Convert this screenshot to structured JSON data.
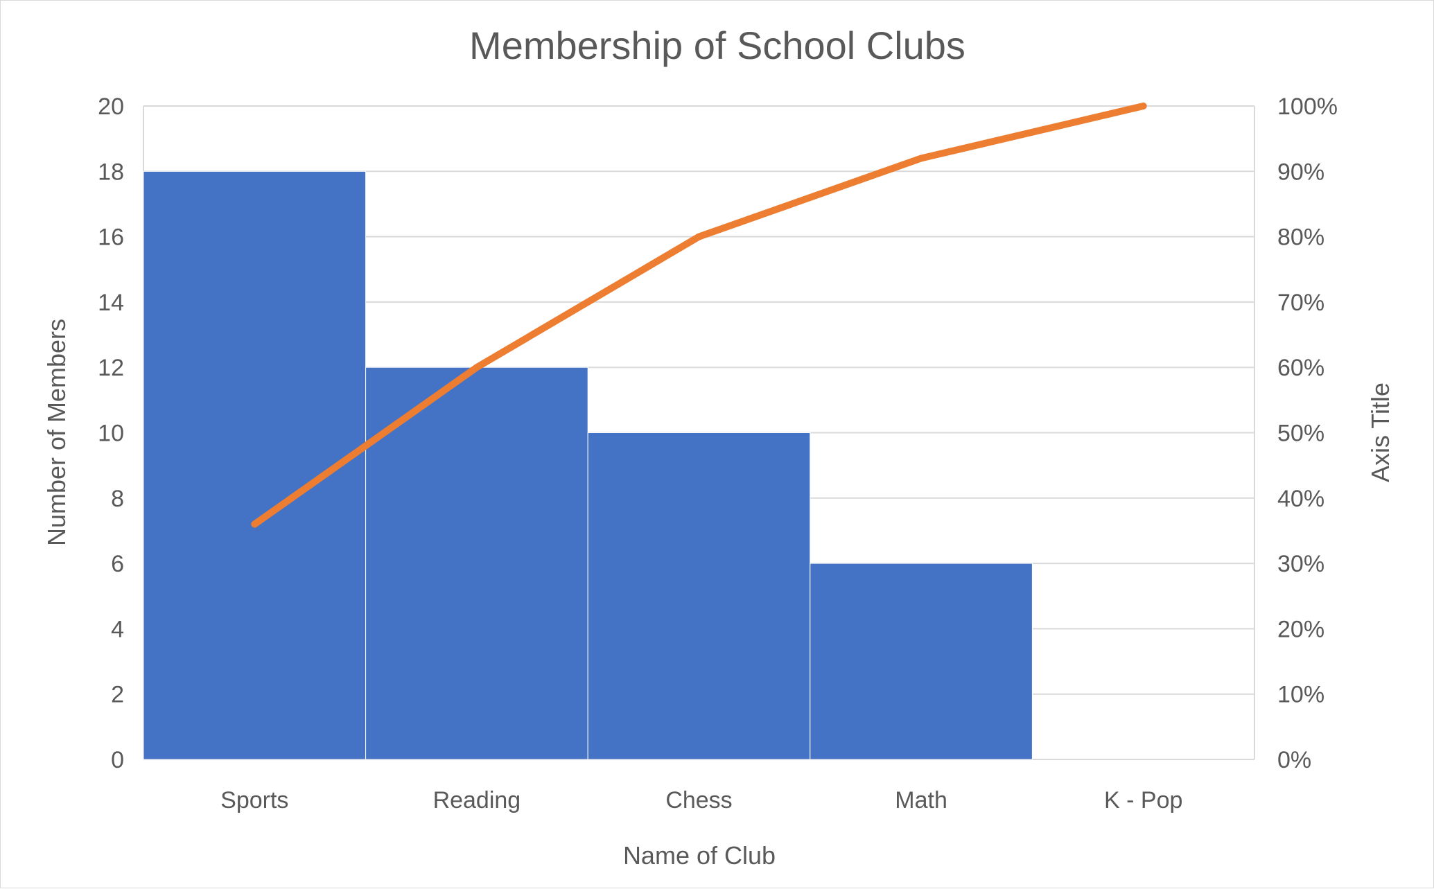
{
  "chart_data": {
    "type": "bar",
    "title": "Membership of School Clubs",
    "xlabel": "Name of Club",
    "ylabel": "Number of Members",
    "y2label": "Axis Title",
    "categories": [
      "Sports",
      "Reading",
      "Chess",
      "Math",
      "K - Pop"
    ],
    "series": [
      {
        "type": "bar",
        "values": [
          18,
          12,
          10,
          6,
          0
        ]
      },
      {
        "type": "line",
        "axis": "secondary",
        "values": [
          36,
          60,
          80,
          92,
          100
        ]
      }
    ],
    "ylim": [
      0,
      20
    ],
    "y_ticks": [
      "0",
      "2",
      "4",
      "6",
      "8",
      "10",
      "12",
      "14",
      "16",
      "18",
      "20"
    ],
    "y2lim": [
      0,
      100
    ],
    "y2_ticks": [
      "0%",
      "10%",
      "20%",
      "30%",
      "40%",
      "50%",
      "60%",
      "70%",
      "80%",
      "90%",
      "100%"
    ],
    "grid": true,
    "legend": "none",
    "colors": {
      "bar": "#4472c4",
      "line": "#ed7d31",
      "grid": "#d9d9d9",
      "text": "#595959"
    }
  }
}
